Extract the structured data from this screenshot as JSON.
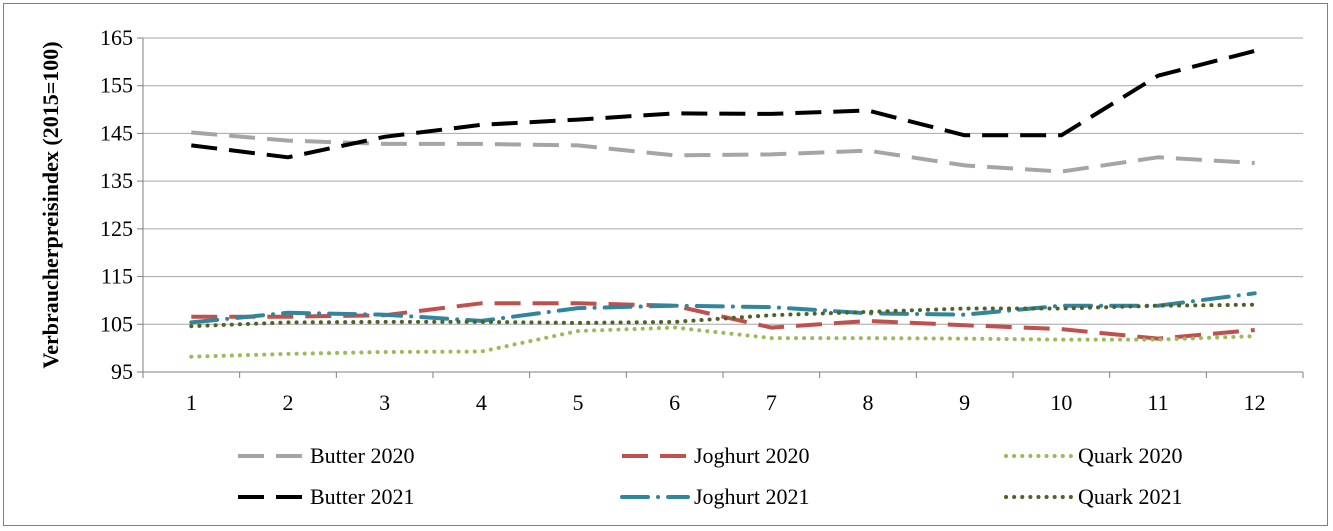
{
  "chart_data": {
    "type": "line",
    "title": "",
    "xlabel": "",
    "ylabel": "Verbraucherpreisindex (2015=100)",
    "x": [
      1,
      2,
      3,
      4,
      5,
      6,
      7,
      8,
      9,
      10,
      11,
      12
    ],
    "ylim": [
      95,
      165
    ],
    "yticks": [
      95,
      105,
      115,
      125,
      135,
      145,
      155,
      165
    ],
    "grid": "horizontal",
    "legend_position": "bottom",
    "series": [
      {
        "name": "Butter 2020",
        "color": "#a5a5a5",
        "style": "long-dash",
        "values": [
          145.2,
          143.5,
          142.8,
          142.8,
          142.5,
          140.4,
          140.6,
          141.4,
          138.3,
          137.0,
          140.0,
          138.8
        ]
      },
      {
        "name": "Joghurt 2020",
        "color": "#c0504d",
        "style": "long-dash",
        "values": [
          106.6,
          106.6,
          106.9,
          109.4,
          109.4,
          108.9,
          104.3,
          105.7,
          104.8,
          104.0,
          102.0,
          103.8
        ]
      },
      {
        "name": "Quark 2020",
        "color": "#9bbb59",
        "style": "dot",
        "values": [
          98.2,
          98.8,
          99.2,
          99.3,
          103.6,
          104.3,
          102.1,
          102.1,
          102.0,
          101.8,
          101.8,
          102.5
        ]
      },
      {
        "name": "Butter 2021",
        "color": "#000000",
        "style": "long-dash",
        "values": [
          142.5,
          140.0,
          144.3,
          146.8,
          147.9,
          149.2,
          149.1,
          149.8,
          144.6,
          144.6,
          157.1,
          162.3
        ]
      },
      {
        "name": "Joghurt 2021",
        "color": "#31859c",
        "style": "dash-dot",
        "values": [
          105.4,
          107.4,
          107.0,
          105.7,
          108.4,
          108.9,
          108.6,
          107.3,
          107.0,
          108.9,
          108.9,
          111.5
        ]
      },
      {
        "name": "Quark 2021",
        "color": "#4f6228",
        "style": "dot",
        "values": [
          104.6,
          105.4,
          105.5,
          105.5,
          105.3,
          105.5,
          106.9,
          107.6,
          108.3,
          108.3,
          108.9,
          109.1
        ]
      }
    ]
  }
}
